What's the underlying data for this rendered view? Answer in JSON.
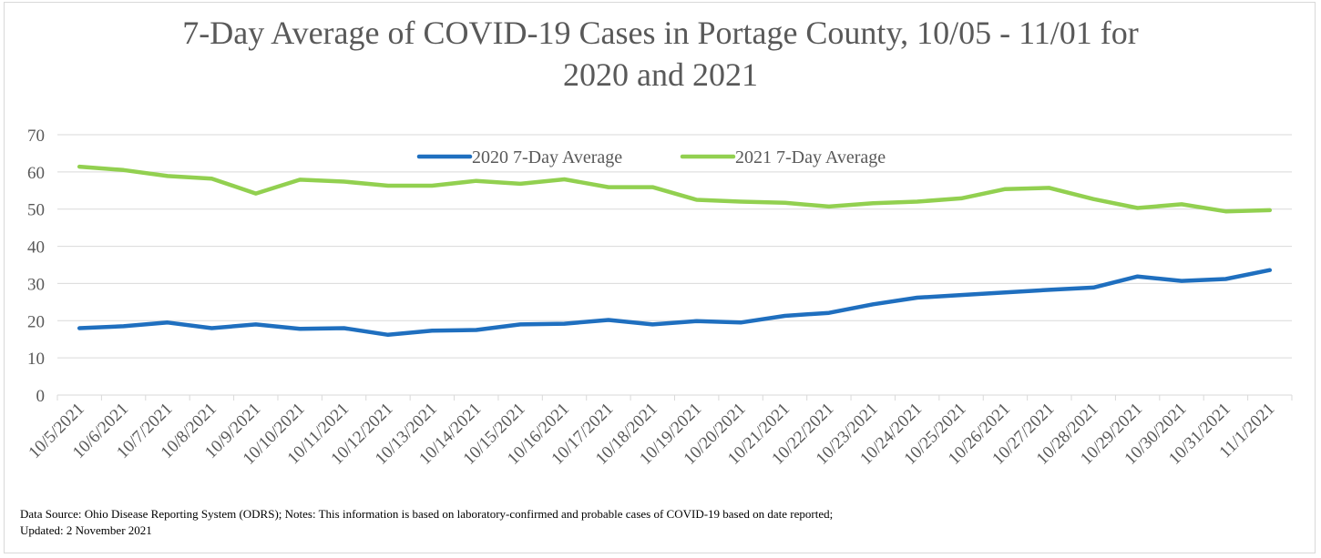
{
  "chart_data": {
    "type": "line",
    "title_line1": "7-Day Average of COVID-19 Cases in Portage County, 10/05 - 11/01 for",
    "title_line2": "2020 and 2021",
    "xlabel": "",
    "ylabel": "",
    "ylim": [
      0,
      70
    ],
    "yticks": [
      0,
      10,
      20,
      30,
      40,
      50,
      60,
      70
    ],
    "grid": true,
    "legend_placement": "top-center",
    "categories": [
      "10/5/2021",
      "10/6/2021",
      "10/7/2021",
      "10/8/2021",
      "10/9/2021",
      "10/10/2021",
      "10/11/2021",
      "10/12/2021",
      "10/13/2021",
      "10/14/2021",
      "10/15/2021",
      "10/16/2021",
      "10/17/2021",
      "10/18/2021",
      "10/19/2021",
      "10/20/2021",
      "10/21/2021",
      "10/22/2021",
      "10/23/2021",
      "10/24/2021",
      "10/25/2021",
      "10/26/2021",
      "10/27/2021",
      "10/28/2021",
      "10/29/2021",
      "10/30/2021",
      "10/31/2021",
      "11/1/2021"
    ],
    "series": [
      {
        "name": "2020 7-Day Average",
        "color": "#1f6fbf",
        "values": [
          18.0,
          18.5,
          19.5,
          18.0,
          19.0,
          17.8,
          18.0,
          16.2,
          17.3,
          17.5,
          19.0,
          19.2,
          20.2,
          19.0,
          19.9,
          19.5,
          21.3,
          22.1,
          24.4,
          26.2,
          26.9,
          27.6,
          28.3,
          28.9,
          31.9,
          30.7,
          31.2,
          33.6
        ]
      },
      {
        "name": "2021 7-Day Average",
        "color": "#92d050",
        "values": [
          61.4,
          60.5,
          58.9,
          58.2,
          54.2,
          57.9,
          57.4,
          56.3,
          56.3,
          57.6,
          56.8,
          58.0,
          55.9,
          55.9,
          52.5,
          52.0,
          51.7,
          50.7,
          51.6,
          52.0,
          52.9,
          55.4,
          55.7,
          52.7,
          50.3,
          51.3,
          49.4,
          49.7
        ]
      }
    ]
  },
  "footnote": {
    "line1": "Data Source: Ohio Disease Reporting System (ODRS); Notes: This information is based on laboratory-confirmed and probable cases of COVID-19 based on date reported;",
    "line2": "Updated: 2 November 2021"
  }
}
